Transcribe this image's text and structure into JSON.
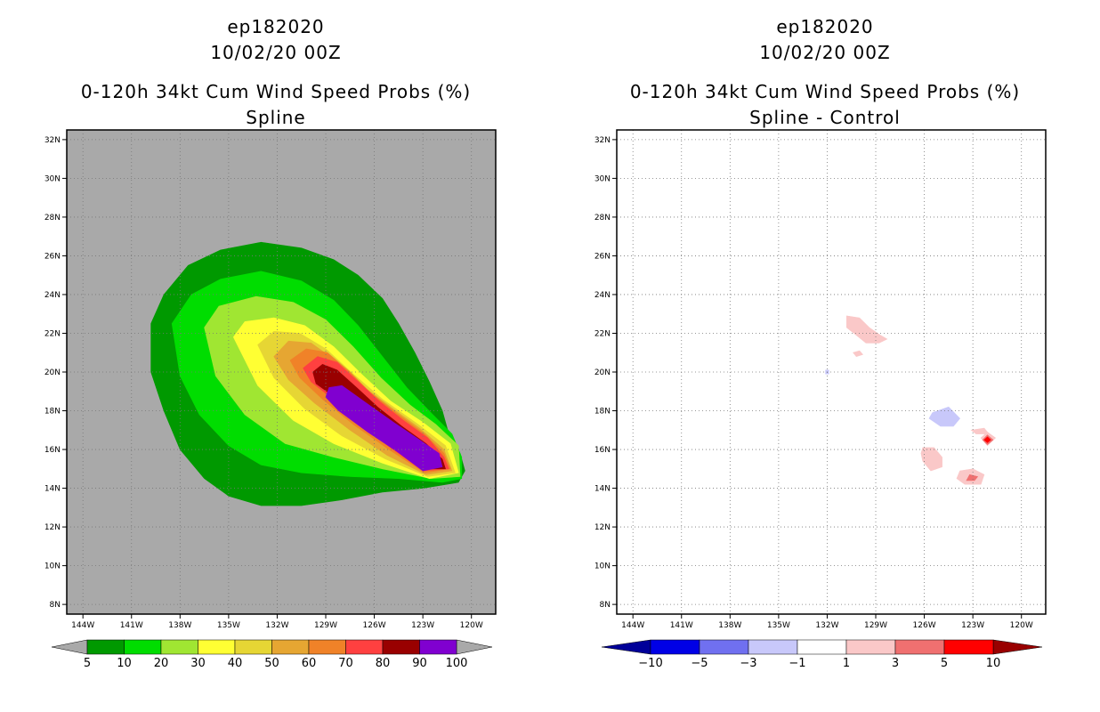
{
  "chart_data": [
    {
      "type": "heatmap",
      "storm_id": "ep182020",
      "date": "10/02/20 00Z",
      "title": "0-120h 34kt Cum Wind Speed Probs (%)",
      "subtitle": "Spline",
      "xticks": [
        "144W",
        "141W",
        "138W",
        "135W",
        "132W",
        "129W",
        "126W",
        "123W",
        "120W"
      ],
      "yticks": [
        "8N",
        "10N",
        "12N",
        "14N",
        "16N",
        "18N",
        "20N",
        "22N",
        "24N",
        "26N",
        "28N",
        "30N",
        "32N"
      ],
      "xlim": [
        -145,
        -118.5
      ],
      "ylim": [
        7.5,
        32.5
      ],
      "grid": true,
      "background_color": "#a9a9a9",
      "colorbar": {
        "labels": [
          "5",
          "10",
          "20",
          "30",
          "40",
          "50",
          "60",
          "70",
          "80",
          "90",
          "100"
        ],
        "colors": [
          "#009900",
          "#00dd00",
          "#a0e632",
          "#ffff33",
          "#e6d634",
          "#e6a632",
          "#f08228",
          "#ff4040",
          "#990000",
          "#8000d0"
        ],
        "extend_colors": [
          "#a9a9a9",
          "#a9a9a9"
        ]
      },
      "contours": [
        {
          "level": 5,
          "color": "#009900",
          "points": [
            [
              -139.8,
              22.5
            ],
            [
              -139,
              24
            ],
            [
              -137.5,
              25.5
            ],
            [
              -135.5,
              26.3
            ],
            [
              -133,
              26.7
            ],
            [
              -130.5,
              26.4
            ],
            [
              -128.5,
              25.8
            ],
            [
              -127,
              25
            ],
            [
              -125.5,
              23.8
            ],
            [
              -124.5,
              22.5
            ],
            [
              -123.5,
              21
            ],
            [
              -122.6,
              19.5
            ],
            [
              -121.8,
              18
            ],
            [
              -121.4,
              16.8
            ],
            [
              -120.7,
              15.8
            ],
            [
              -120.4,
              14.9
            ],
            [
              -120.8,
              14.3
            ],
            [
              -123,
              14
            ],
            [
              -125.5,
              13.8
            ],
            [
              -128,
              13.4
            ],
            [
              -130.5,
              13.1
            ],
            [
              -133,
              13.1
            ],
            [
              -135,
              13.6
            ],
            [
              -136.5,
              14.5
            ],
            [
              -138,
              16
            ],
            [
              -139,
              18
            ],
            [
              -139.8,
              20
            ]
          ]
        },
        {
          "level": 10,
          "color": "#00dd00",
          "points": [
            [
              -138.5,
              22.5
            ],
            [
              -137.3,
              24
            ],
            [
              -135.5,
              24.8
            ],
            [
              -133,
              25.2
            ],
            [
              -130.5,
              24.7
            ],
            [
              -128.5,
              23.7
            ],
            [
              -127,
              22.4
            ],
            [
              -125.5,
              20.8
            ],
            [
              -124,
              19.2
            ],
            [
              -122.5,
              17.9
            ],
            [
              -121.2,
              16.8
            ],
            [
              -120.6,
              15.6
            ],
            [
              -120.6,
              14.5
            ],
            [
              -121.8,
              14.3
            ],
            [
              -124.5,
              14.5
            ],
            [
              -127.5,
              14.6
            ],
            [
              -130.5,
              14.8
            ],
            [
              -133,
              15.2
            ],
            [
              -135,
              16.2
            ],
            [
              -136.8,
              17.8
            ],
            [
              -138,
              19.8
            ]
          ]
        },
        {
          "level": 20,
          "color": "#a0e632",
          "points": [
            [
              -136.5,
              22.3
            ],
            [
              -135.6,
              23.4
            ],
            [
              -133.3,
              23.9
            ],
            [
              -131,
              23.6
            ],
            [
              -129,
              22.7
            ],
            [
              -127.3,
              21.3
            ],
            [
              -125.6,
              19.7
            ],
            [
              -123.8,
              18.3
            ],
            [
              -122.2,
              17.3
            ],
            [
              -120.8,
              16.2
            ],
            [
              -120.7,
              14.6
            ],
            [
              -122.5,
              14.5
            ],
            [
              -125.5,
              15
            ],
            [
              -128.5,
              15.6
            ],
            [
              -131.5,
              16.3
            ],
            [
              -134,
              17.8
            ],
            [
              -135.8,
              19.8
            ]
          ]
        },
        {
          "level": 30,
          "color": "#ffff33",
          "points": [
            [
              -134.7,
              21.8
            ],
            [
              -134,
              22.6
            ],
            [
              -132.2,
              22.8
            ],
            [
              -130.3,
              22.4
            ],
            [
              -128.5,
              21.3
            ],
            [
              -126.8,
              19.9
            ],
            [
              -125,
              18.5
            ],
            [
              -123,
              17.4
            ],
            [
              -121.3,
              16.3
            ],
            [
              -120.8,
              14.8
            ],
            [
              -122.6,
              14.5
            ],
            [
              -125.5,
              15.3
            ],
            [
              -128.5,
              16.3
            ],
            [
              -131,
              17.5
            ],
            [
              -133.2,
              19.3
            ]
          ]
        },
        {
          "level": 40,
          "color": "#e6d634",
          "points": [
            [
              -133.2,
              21.4
            ],
            [
              -132.2,
              22.1
            ],
            [
              -130.6,
              22
            ],
            [
              -129,
              21.2
            ],
            [
              -127.3,
              19.9
            ],
            [
              -125.5,
              18.6
            ],
            [
              -123.3,
              17.3
            ],
            [
              -121.6,
              16.2
            ],
            [
              -121,
              14.8
            ],
            [
              -122.7,
              14.6
            ],
            [
              -125.3,
              15.5
            ],
            [
              -128,
              16.7
            ],
            [
              -130.3,
              18.1
            ],
            [
              -132.2,
              19.7
            ]
          ]
        },
        {
          "level": 50,
          "color": "#e6a632",
          "points": [
            [
              -132.2,
              20.8
            ],
            [
              -131.3,
              21.6
            ],
            [
              -129.9,
              21.5
            ],
            [
              -128.4,
              20.6
            ],
            [
              -126.9,
              19.4
            ],
            [
              -125,
              18.2
            ],
            [
              -123.2,
              17.1
            ],
            [
              -121.7,
              16
            ],
            [
              -121.2,
              14.9
            ],
            [
              -122.8,
              14.7
            ],
            [
              -125.2,
              15.7
            ],
            [
              -127.5,
              17
            ],
            [
              -129.7,
              18.4
            ],
            [
              -131.3,
              19.6
            ]
          ]
        },
        {
          "level": 60,
          "color": "#f08228",
          "points": [
            [
              -131.2,
              20.6
            ],
            [
              -130.2,
              21.2
            ],
            [
              -128.9,
              21
            ],
            [
              -127.5,
              20
            ],
            [
              -126.2,
              18.9
            ],
            [
              -124.5,
              17.8
            ],
            [
              -122.9,
              16.8
            ],
            [
              -121.7,
              15.8
            ],
            [
              -121.3,
              15
            ],
            [
              -122.9,
              14.8
            ],
            [
              -125.1,
              16
            ],
            [
              -127.3,
              17.3
            ],
            [
              -129.2,
              18.6
            ],
            [
              -130.6,
              19.7
            ]
          ]
        },
        {
          "level": 70,
          "color": "#ff4040",
          "points": [
            [
              -130.4,
              20.2
            ],
            [
              -129.5,
              20.8
            ],
            [
              -128.3,
              20.5
            ],
            [
              -127,
              19.5
            ],
            [
              -125.7,
              18.5
            ],
            [
              -124.2,
              17.5
            ],
            [
              -122.7,
              16.6
            ],
            [
              -121.7,
              15.6
            ],
            [
              -121.4,
              15
            ],
            [
              -123,
              14.9
            ],
            [
              -125,
              16.1
            ],
            [
              -127,
              17.4
            ],
            [
              -128.7,
              18.7
            ],
            [
              -129.9,
              19.5
            ]
          ]
        },
        {
          "level": 80,
          "color": "#990000",
          "points": [
            [
              -129.8,
              20
            ],
            [
              -129.2,
              20.4
            ],
            [
              -128.3,
              20.1
            ],
            [
              -127.1,
              19.2
            ],
            [
              -125.8,
              18.2
            ],
            [
              -124.3,
              17.2
            ],
            [
              -122.8,
              16.3
            ],
            [
              -121.8,
              15.5
            ],
            [
              -121.6,
              15
            ],
            [
              -123.1,
              15
            ],
            [
              -125.1,
              16.4
            ],
            [
              -126.9,
              17.7
            ],
            [
              -128.6,
              18.8
            ],
            [
              -129.6,
              19.4
            ]
          ]
        },
        {
          "level": 90,
          "color": "#8000d0",
          "points": [
            [
              -128.8,
              19.2
            ],
            [
              -128,
              19.3
            ],
            [
              -126.5,
              18.4
            ],
            [
              -124.8,
              17.4
            ],
            [
              -123.2,
              16.5
            ],
            [
              -122,
              15.8
            ],
            [
              -121.8,
              15.1
            ],
            [
              -123,
              14.9
            ],
            [
              -124.6,
              15.9
            ],
            [
              -126.4,
              16.9
            ],
            [
              -128.2,
              18
            ],
            [
              -129,
              18.7
            ]
          ]
        }
      ]
    },
    {
      "type": "heatmap",
      "storm_id": "ep182020",
      "date": "10/02/20 00Z",
      "title": "0-120h 34kt Cum Wind Speed Probs (%)",
      "subtitle": "Spline - Control",
      "xticks": [
        "144W",
        "141W",
        "138W",
        "135W",
        "132W",
        "129W",
        "126W",
        "123W",
        "120W"
      ],
      "yticks": [
        "8N",
        "10N",
        "12N",
        "14N",
        "16N",
        "18N",
        "20N",
        "22N",
        "24N",
        "26N",
        "28N",
        "30N",
        "32N"
      ],
      "xlim": [
        -145,
        -118.5
      ],
      "ylim": [
        7.5,
        32.5
      ],
      "grid": true,
      "background_color": "#ffffff",
      "colorbar": {
        "labels": [
          "-10",
          "-5",
          "-3",
          "-1",
          "1",
          "3",
          "5",
          "10"
        ],
        "colors": [
          "#0000e6",
          "#7070f0",
          "#c8c8fa",
          "#ffffff",
          "#fac8c8",
          "#f07070",
          "#ff0000"
        ],
        "extend_colors": [
          "#000099",
          "#990000"
        ]
      },
      "contours": [
        {
          "level": 1,
          "color": "#fac8c8",
          "points": [
            [
              -130.8,
              22.9
            ],
            [
              -130,
              22.8
            ],
            [
              -129.4,
              22.3
            ],
            [
              -128.7,
              21.9
            ],
            [
              -128.3,
              21.7
            ],
            [
              -128.8,
              21.5
            ],
            [
              -129.6,
              21.5
            ],
            [
              -130.2,
              21.9
            ],
            [
              -130.8,
              22.3
            ]
          ]
        },
        {
          "level": 1,
          "color": "#fac8c8",
          "points": [
            [
              -130.4,
              21
            ],
            [
              -130,
              21.1
            ],
            [
              -129.8,
              20.9
            ],
            [
              -130.2,
              20.8
            ]
          ]
        },
        {
          "level": -1,
          "color": "#c8c8fa",
          "points": [
            [
              -132.1,
              20.1
            ],
            [
              -131.9,
              20.1
            ],
            [
              -131.9,
              19.9
            ],
            [
              -132.1,
              19.9
            ]
          ]
        },
        {
          "level": -1,
          "color": "#c8c8fa",
          "points": [
            [
              -125.5,
              17.9
            ],
            [
              -124.5,
              18.2
            ],
            [
              -123.8,
              17.6
            ],
            [
              -124.2,
              17.2
            ],
            [
              -125,
              17.2
            ],
            [
              -125.7,
              17.6
            ]
          ]
        },
        {
          "level": 1,
          "color": "#fac8c8",
          "points": [
            [
              -123.1,
              17
            ],
            [
              -122.3,
              17.1
            ],
            [
              -122,
              16.8
            ],
            [
              -122.8,
              16.8
            ]
          ]
        },
        {
          "level": 1,
          "color": "#fac8c8",
          "points": [
            [
              -122.1,
              16.9
            ],
            [
              -121.6,
              16.6
            ],
            [
              -122.1,
              16.2
            ],
            [
              -122.5,
              16.6
            ]
          ]
        },
        {
          "level": 3,
          "color": "#f07070",
          "points": [
            [
              -122.1,
              16.75
            ],
            [
              -121.75,
              16.5
            ],
            [
              -122.1,
              16.25
            ],
            [
              -122.4,
              16.5
            ]
          ]
        },
        {
          "level": 5,
          "color": "#ff0000",
          "points": [
            [
              -122.1,
              16.65
            ],
            [
              -121.9,
              16.5
            ],
            [
              -122.1,
              16.35
            ],
            [
              -122.3,
              16.5
            ]
          ]
        },
        {
          "level": 1,
          "color": "#fac8c8",
          "points": [
            [
              -126.1,
              16.1
            ],
            [
              -125.4,
              16.1
            ],
            [
              -124.9,
              15.6
            ],
            [
              -124.9,
              15.1
            ],
            [
              -125.6,
              14.9
            ],
            [
              -126.1,
              15.4
            ],
            [
              -126.2,
              15.8
            ]
          ]
        },
        {
          "level": 1,
          "color": "#fac8c8",
          "points": [
            [
              -123.8,
              14.9
            ],
            [
              -123,
              15
            ],
            [
              -122.3,
              14.7
            ],
            [
              -122.5,
              14.2
            ],
            [
              -123.5,
              14.2
            ],
            [
              -124,
              14.5
            ]
          ]
        },
        {
          "level": 3,
          "color": "#f07070",
          "points": [
            [
              -123.2,
              14.7
            ],
            [
              -122.7,
              14.6
            ],
            [
              -122.9,
              14.4
            ],
            [
              -123.4,
              14.4
            ]
          ]
        }
      ]
    }
  ]
}
